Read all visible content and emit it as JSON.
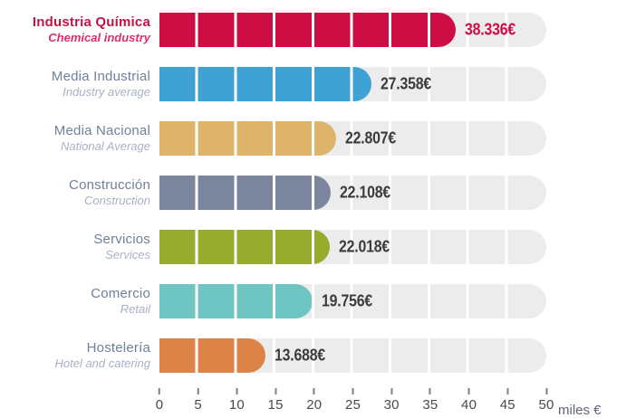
{
  "chart_data": {
    "type": "bar",
    "orientation": "horizontal",
    "title": "",
    "xlabel": "miles €",
    "ylabel": "",
    "xlim": [
      0,
      50
    ],
    "x_ticks": [
      0,
      5,
      10,
      15,
      20,
      25,
      30,
      35,
      40,
      45,
      50
    ],
    "segment_interval": 5,
    "grid": false,
    "legend": false,
    "track_color": "#ececec",
    "axis": {
      "unit_label": "miles €",
      "tick_color": "#808080",
      "tick_label_color": "#4a4a4a"
    },
    "rows": [
      {
        "label": "Industria Química",
        "sublabel": "Chemical industry",
        "value": 38.336,
        "value_label": "38.336€",
        "color": "#ce0d45",
        "highlight": true
      },
      {
        "label": "Media Industrial",
        "sublabel": "Industry average",
        "value": 27.358,
        "value_label": "27.358€",
        "color": "#3fa2d2",
        "highlight": false
      },
      {
        "label": "Media Nacional",
        "sublabel": "National Average",
        "value": 22.807,
        "value_label": "22.807€",
        "color": "#deb46a",
        "highlight": false
      },
      {
        "label": "Construcción",
        "sublabel": "Construction",
        "value": 22.108,
        "value_label": "22.108€",
        "color": "#7b859e",
        "highlight": false
      },
      {
        "label": "Servicios",
        "sublabel": "Services",
        "value": 22.018,
        "value_label": "22.018€",
        "color": "#97ab2c",
        "highlight": false
      },
      {
        "label": "Comercio",
        "sublabel": "Retail",
        "value": 19.756,
        "value_label": "19.756€",
        "color": "#6fc5c1",
        "highlight": false
      },
      {
        "label": "Hostelería",
        "sublabel": "Hotel and catering",
        "value": 13.688,
        "value_label": "13.688€",
        "color": "#de8347",
        "highlight": false
      }
    ],
    "colors": {
      "label": "#71809b",
      "sublabel": "#a7b1c4",
      "highlight_label": "#c21345",
      "highlight_sublabel": "#da3166",
      "value_text": "#3b3b3d"
    }
  }
}
